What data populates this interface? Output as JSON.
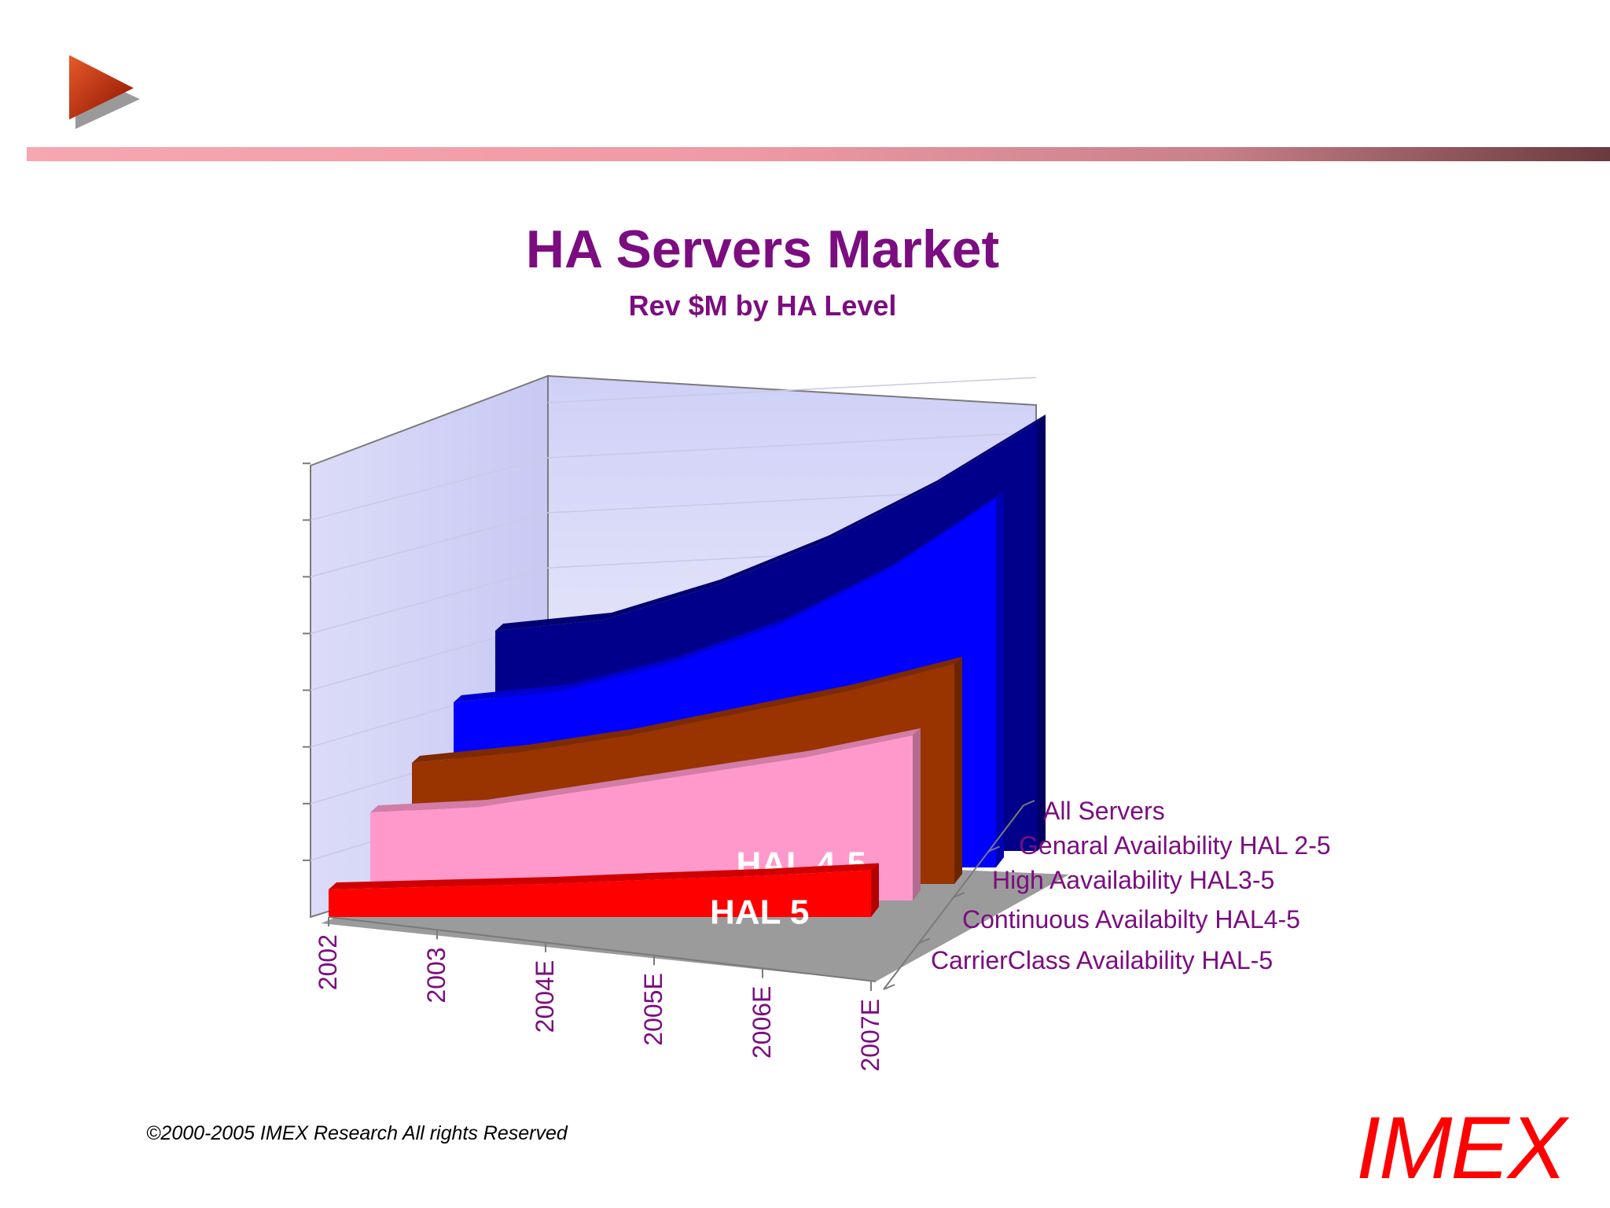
{
  "slide": {
    "copyright": "©2000-2005  IMEX Research All rights Reserved",
    "brand": "IMEX",
    "accent_color": "#7b0d80",
    "brand_color": "#ff0000"
  },
  "chart_data": {
    "type": "area",
    "title": "HA Servers Market",
    "subtitle": "Rev $M by HA Level",
    "categories": [
      "2002",
      "2003",
      "2004E",
      "2005E",
      "2006E",
      "2007E"
    ],
    "depth_labels": [
      "All Servers",
      "Genaral Availability HAL 2-5",
      "High Aavailability HAL3-5",
      "Continuous Availabilty HAL4-5",
      "CarrierClass Availability HAL-5"
    ],
    "series": [
      {
        "name": "HAL 2-5",
        "color": "#00008b",
        "values": [
          40,
          42,
          48,
          56,
          66,
          78
        ]
      },
      {
        "name": "HAL 2-5",
        "color": "#0000ff",
        "values": [
          30,
          32,
          37,
          44,
          54,
          67
        ]
      },
      {
        "name": "HAL 3-5",
        "color": "#993300",
        "values": [
          22,
          24,
          27,
          31,
          35,
          40
        ]
      },
      {
        "name": "HAL 4-5",
        "color": "#ff99cc",
        "values": [
          16,
          17,
          20,
          23,
          26,
          30
        ]
      },
      {
        "name": "HAL 5",
        "color": "#ff0000",
        "values": [
          5,
          5.5,
          6,
          6.8,
          7.5,
          8.5
        ]
      }
    ],
    "ylim": [
      0,
      80
    ],
    "grid": true,
    "legend": "none"
  }
}
